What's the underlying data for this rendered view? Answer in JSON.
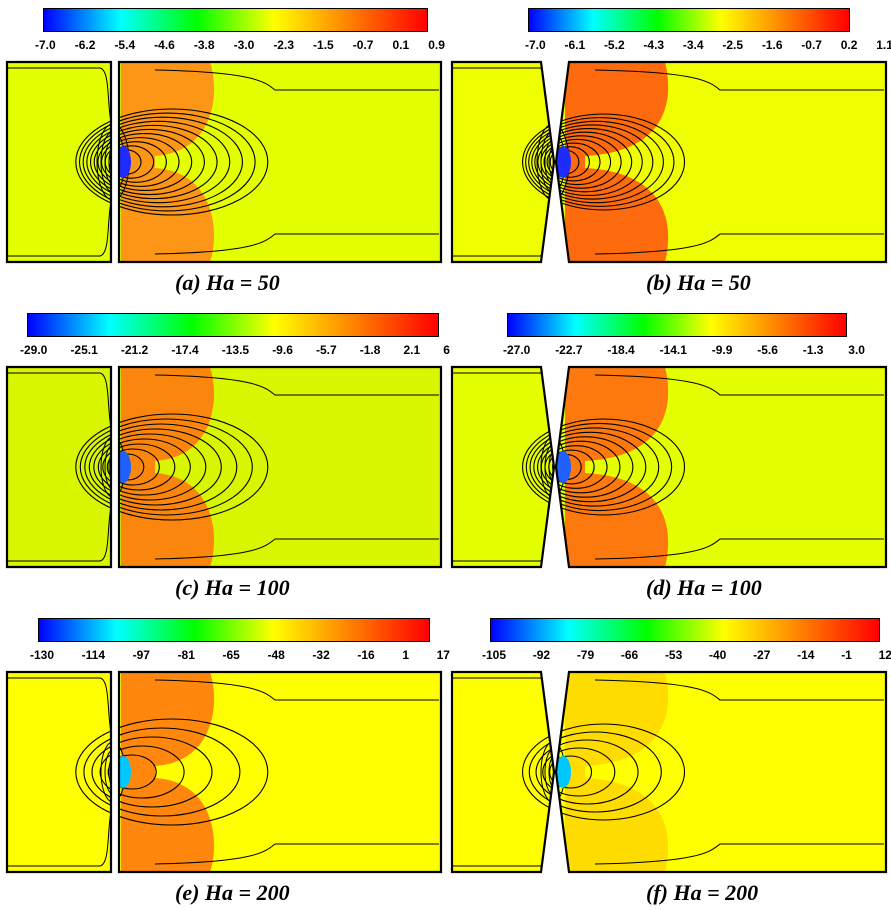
{
  "colorscale": [
    "#0000ff",
    "#00ffff",
    "#00ff00",
    "#ffff00",
    "#ff7f00",
    "#ff0000"
  ],
  "panels": [
    {
      "id": "a",
      "caption": "(a) Ha = 50",
      "ticks": [
        "-7.0",
        "-6.2",
        "-5.4",
        "-4.6",
        "-3.8",
        "-3.0",
        "-2.3",
        "-1.5",
        "-0.7",
        "0.1",
        "0.9"
      ],
      "geometry": "gap",
      "levels": 12,
      "background": "#e3ff00",
      "near_wall": "#ff8a1a",
      "core": "#1f2cff"
    },
    {
      "id": "b",
      "caption": "(b) Ha = 50",
      "ticks": [
        "-7.0",
        "-6.1",
        "-5.2",
        "-4.3",
        "-3.4",
        "-2.5",
        "-1.6",
        "-0.7",
        "0.2",
        "1.1"
      ],
      "geometry": "x",
      "levels": 12,
      "background": "#f0ff00",
      "near_wall": "#ff5a10",
      "core": "#1f2cff"
    },
    {
      "id": "c",
      "caption": "(c) Ha = 100",
      "ticks": [
        "-29.0",
        "-25.1",
        "-21.2",
        "-17.4",
        "-13.5",
        "-9.6",
        "-5.7",
        "-1.8",
        "2.1",
        "6"
      ],
      "geometry": "gap",
      "levels": 10,
      "background": "#d8f600",
      "near_wall": "#ff7a10",
      "core": "#2060ff"
    },
    {
      "id": "d",
      "caption": "(d) Ha = 100",
      "ticks": [
        "-27.0",
        "-22.7",
        "-18.4",
        "-14.1",
        "-9.9",
        "-5.6",
        "-1.3",
        "3.0"
      ],
      "geometry": "x",
      "levels": 10,
      "background": "#e4ff00",
      "near_wall": "#ff6a10",
      "core": "#2060ff"
    },
    {
      "id": "e",
      "caption": "(e) Ha = 200",
      "ticks": [
        "-130",
        "-114",
        "-97",
        "-81",
        "-65",
        "-48",
        "-32",
        "-16",
        "1",
        "17"
      ],
      "geometry": "gap",
      "levels": 6,
      "background": "#ffff00",
      "near_wall": "#ff7a10",
      "core": "#00c8ff"
    },
    {
      "id": "f",
      "caption": "(f) Ha = 200",
      "ticks": [
        "-105",
        "-92",
        "-79",
        "-66",
        "-53",
        "-40",
        "-27",
        "-14",
        "-1",
        "12"
      ],
      "geometry": "x",
      "levels": 6,
      "background": "#ffff00",
      "near_wall": "#ffd800",
      "core": "#00c8ff"
    }
  ]
}
